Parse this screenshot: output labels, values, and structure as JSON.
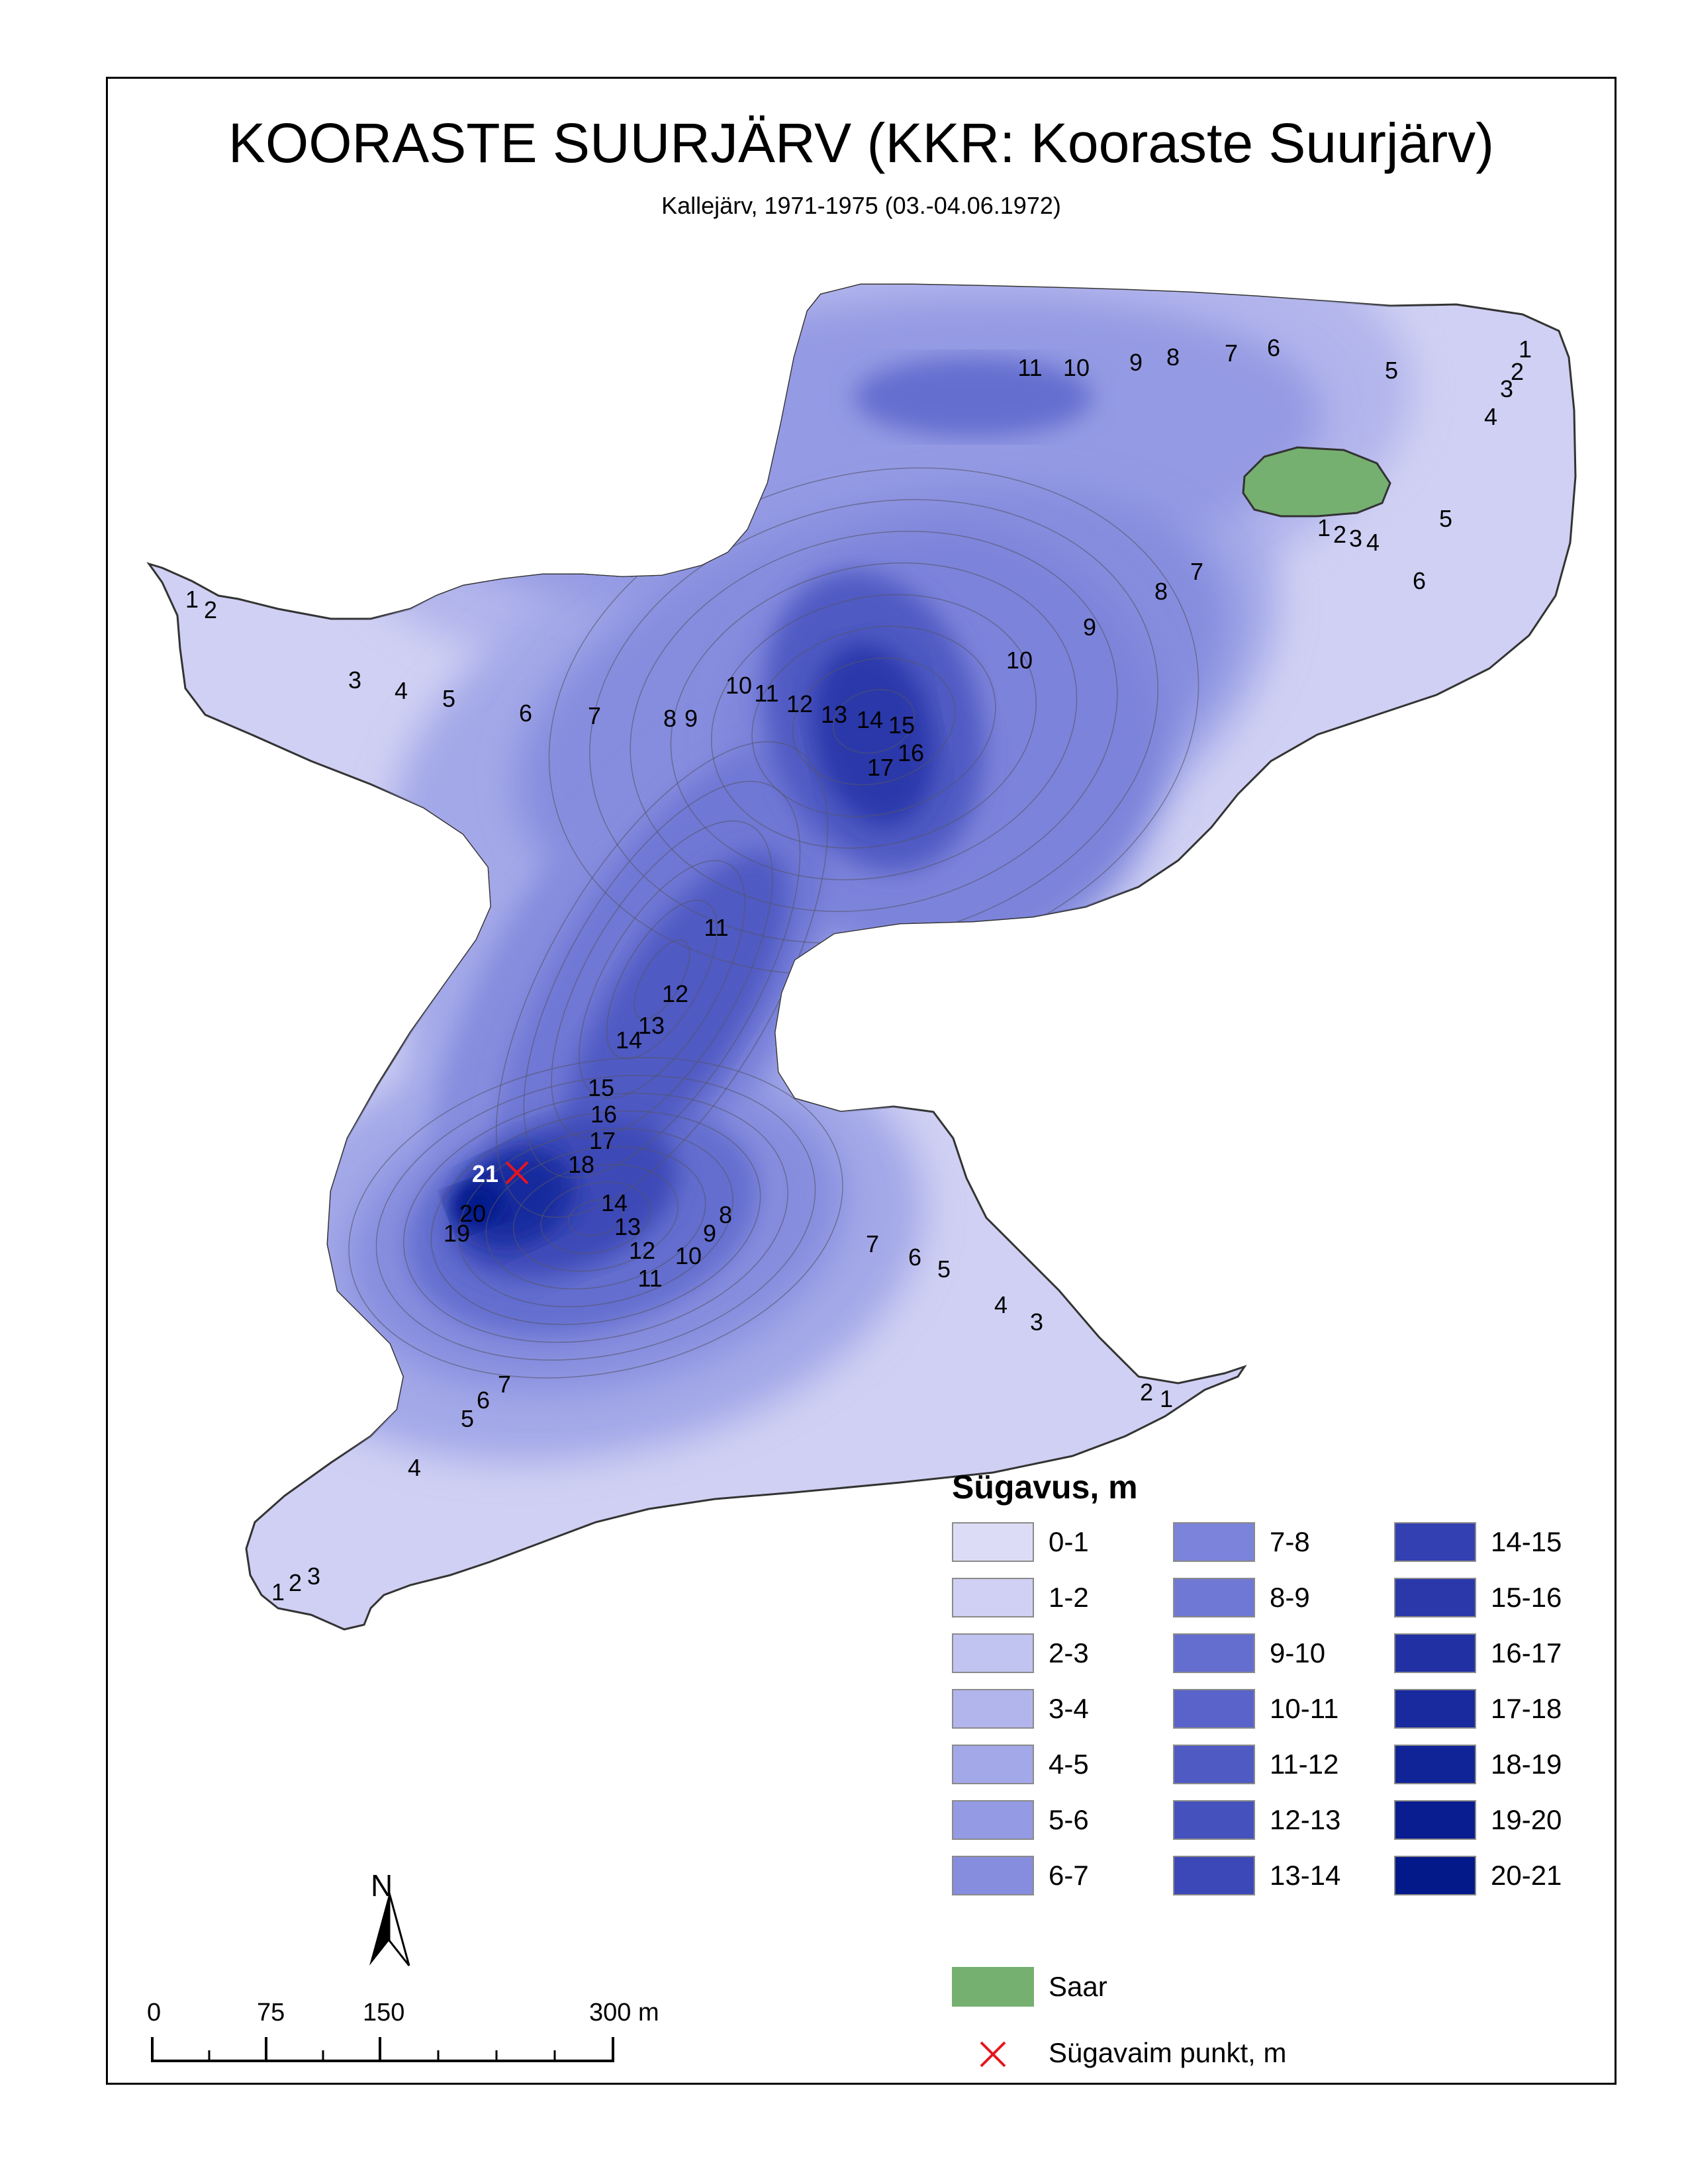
{
  "map": {
    "title": "KOORASTE SUURJÄRV (KKR: Kooraste Suurjärv)",
    "subtitle": "Kallejärv, 1971-1975 (03.-04.06.1972)",
    "deepest_point_label": "21",
    "colors": {
      "land_island": "#75b071",
      "deepest_marker": "#e8141c",
      "contour_line": "#555566",
      "shore_line": "#333333"
    },
    "contour_labels": [
      "1",
      "2",
      "3",
      "4",
      "5",
      "6",
      "7",
      "8",
      "9",
      "10",
      "11",
      "12",
      "13",
      "14",
      "15",
      "16",
      "17",
      "18",
      "19",
      "20"
    ]
  },
  "legend": {
    "title": "Sügavus, m",
    "classes": [
      {
        "label": "0-1",
        "color": "#dcdcf6"
      },
      {
        "label": "1-2",
        "color": "#cfd0f3"
      },
      {
        "label": "2-3",
        "color": "#c1c3f0"
      },
      {
        "label": "3-4",
        "color": "#b2b5ec"
      },
      {
        "label": "4-5",
        "color": "#a3a8e8"
      },
      {
        "label": "5-6",
        "color": "#949ae3"
      },
      {
        "label": "6-7",
        "color": "#868dde"
      },
      {
        "label": "7-8",
        "color": "#7b83da"
      },
      {
        "label": "8-9",
        "color": "#7078d5"
      },
      {
        "label": "9-10",
        "color": "#646ecf"
      },
      {
        "label": "10-11",
        "color": "#5963c9"
      },
      {
        "label": "11-12",
        "color": "#4f5ac3"
      },
      {
        "label": "12-13",
        "color": "#4551bd"
      },
      {
        "label": "13-14",
        "color": "#3c48b7"
      },
      {
        "label": "14-15",
        "color": "#3240b1"
      },
      {
        "label": "15-16",
        "color": "#2a38aa"
      },
      {
        "label": "16-17",
        "color": "#2131a4"
      },
      {
        "label": "17-18",
        "color": "#192a9e"
      },
      {
        "label": "18-19",
        "color": "#112497"
      },
      {
        "label": "19-20",
        "color": "#091d90"
      },
      {
        "label": "20-21",
        "color": "#031889"
      }
    ],
    "island_label": "Saar",
    "deepest_label": "Sügavaim punkt, m"
  },
  "north_arrow": {
    "label": "N"
  },
  "scale_bar": {
    "labels": [
      "0",
      "75",
      "150",
      "300 m"
    ]
  }
}
